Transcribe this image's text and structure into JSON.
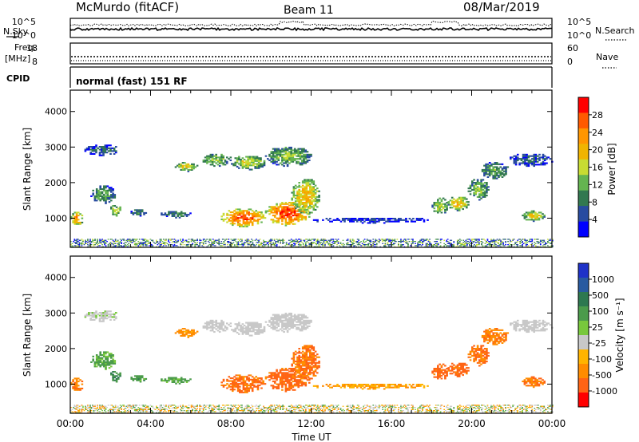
{
  "header": {
    "site": "McMurdo (fitACF)",
    "beam": "Beam 11",
    "date": "08/Mar/2019"
  },
  "panels": {
    "nsky_label": "N.Sky",
    "nsky_ticks": [
      "10^5",
      "10^0"
    ],
    "nsearch_label": "N.Search",
    "nsearch_ticks": [
      "10^5",
      "10^0"
    ],
    "freq_label_1": "Freq.",
    "freq_label_2": "[MHz]",
    "freq_ticks": [
      "18",
      "8"
    ],
    "nave_label": "Nave",
    "nave_ticks": [
      "60",
      "0"
    ],
    "cpid_label": "CPID",
    "cpid_text": "normal (fast) 151 RF"
  },
  "power_panel": {
    "ylabel": "Slant Range [km]",
    "yticks": [
      "4000",
      "3000",
      "2000",
      "1000"
    ],
    "colorbar_label": "Power [dB]",
    "colorbar_ticks": [
      "28",
      "24",
      "20",
      "16",
      "12",
      "8",
      "4"
    ],
    "colorbar_colors": [
      "#ff0000",
      "#ff5a00",
      "#ff9600",
      "#f0b400",
      "#c8dc32",
      "#64b450",
      "#327850",
      "#284ba0",
      "#0000ff"
    ]
  },
  "velocity_panel": {
    "ylabel": "Slant Range [km]",
    "yticks": [
      "4000",
      "3000",
      "2000",
      "1000"
    ],
    "colorbar_label": "Velocity [m s⁻¹]",
    "colorbar_ticks": [
      "1000",
      "500",
      "100",
      "25",
      "-25",
      "-100",
      "-500",
      "-1000"
    ],
    "colorbar_colors": [
      "#1e32c8",
      "#285aa0",
      "#2d7850",
      "#4b9b4b",
      "#78c83c",
      "#c8c8c8",
      "#ffb400",
      "#ff8c00",
      "#ff6414",
      "#ff0000"
    ]
  },
  "x_axis": {
    "ticks": [
      "00:00",
      "04:00",
      "08:00",
      "12:00",
      "16:00",
      "20:00",
      "00:00"
    ],
    "label": "Time UT"
  },
  "chart_data": {
    "type": "heatmap",
    "title": "McMurdo (fitACF)  Beam 11  08/Mar/2019",
    "xlabel": "Time UT",
    "ylabel": "Slant Range [km]",
    "xlim": [
      0,
      24
    ],
    "ylim": [
      180,
      4600
    ],
    "power_clim": [
      2,
      30
    ],
    "velocity_clim": [
      -1000,
      1000
    ],
    "ground_band": {
      "range": [
        180,
        420
      ],
      "coverage": "00:00-24:00"
    },
    "echo_regions": [
      {
        "t": [
          0.0,
          0.6
        ],
        "r": [
          780,
          1180
        ],
        "power": 22,
        "velocity": -80
      },
      {
        "t": [
          0.7,
          2.4
        ],
        "r": [
          2750,
          3050
        ],
        "power": 8,
        "velocity": 20
      },
      {
        "t": [
          1.0,
          2.2
        ],
        "r": [
          1400,
          1900
        ],
        "power": 12,
        "velocity": 60
      },
      {
        "t": [
          1.9,
          2.6
        ],
        "r": [
          1050,
          1350
        ],
        "power": 16,
        "velocity": 90
      },
      {
        "t": [
          3.0,
          3.8
        ],
        "r": [
          1050,
          1250
        ],
        "power": 10,
        "velocity": 80
      },
      {
        "t": [
          4.5,
          6.0
        ],
        "r": [
          1000,
          1200
        ],
        "power": 10,
        "velocity": 70
      },
      {
        "t": [
          5.2,
          6.3
        ],
        "r": [
          2300,
          2550
        ],
        "power": 18,
        "velocity": -60
      },
      {
        "t": [
          6.5,
          8.0
        ],
        "r": [
          2450,
          2800
        ],
        "power": 14,
        "velocity": 10
      },
      {
        "t": [
          8.0,
          9.7
        ],
        "r": [
          2350,
          2750
        ],
        "power": 16,
        "velocity": 0
      },
      {
        "t": [
          9.7,
          12.0
        ],
        "r": [
          2450,
          3000
        ],
        "power": 14,
        "velocity": 15
      },
      {
        "t": [
          7.5,
          9.7
        ],
        "r": [
          750,
          1250
        ],
        "power": 26,
        "velocity": -120
      },
      {
        "t": [
          9.7,
          11.9
        ],
        "r": [
          780,
          1450
        ],
        "power": 27,
        "velocity": -140
      },
      {
        "t": [
          11.0,
          12.4
        ],
        "r": [
          1100,
          2100
        ],
        "power": 20,
        "velocity": -100
      },
      {
        "t": [
          18.0,
          18.8
        ],
        "r": [
          1100,
          1550
        ],
        "power": 16,
        "velocity": -150
      },
      {
        "t": [
          18.8,
          19.8
        ],
        "r": [
          1200,
          1600
        ],
        "power": 20,
        "velocity": -140
      },
      {
        "t": [
          19.8,
          20.8
        ],
        "r": [
          1500,
          2100
        ],
        "power": 14,
        "velocity": -110
      },
      {
        "t": [
          20.4,
          21.8
        ],
        "r": [
          2100,
          2550
        ],
        "power": 12,
        "velocity": -90
      },
      {
        "t": [
          21.8,
          24.0
        ],
        "r": [
          2450,
          2800
        ],
        "power": 8,
        "velocity": 10
      },
      {
        "t": [
          22.5,
          23.6
        ],
        "r": [
          900,
          1200
        ],
        "power": 18,
        "velocity": -100
      },
      {
        "t": [
          12.0,
          18.0
        ],
        "r": [
          850,
          1000
        ],
        "power": 6,
        "velocity": -50
      }
    ]
  }
}
